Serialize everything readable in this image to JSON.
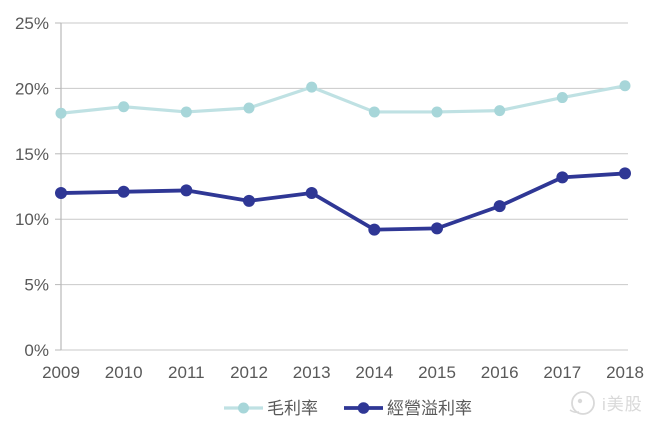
{
  "chart_data": {
    "type": "line",
    "categories": [
      "2009",
      "2010",
      "2011",
      "2012",
      "2013",
      "2014",
      "2015",
      "2016",
      "2017",
      "2018"
    ],
    "series": [
      {
        "key": "gross-margin",
        "name": "毛利率",
        "values": [
          18.1,
          18.6,
          18.2,
          18.5,
          20.1,
          18.2,
          18.2,
          18.3,
          19.3,
          20.2
        ],
        "line_color": "#bfe1e3",
        "marker_color": "#a7d6d9"
      },
      {
        "key": "operating-margin",
        "name": "經營溢利率",
        "values": [
          12.0,
          12.1,
          12.2,
          11.4,
          12.0,
          9.2,
          9.3,
          11.0,
          13.2,
          13.5
        ],
        "line_color": "#2f3795",
        "marker_color": "#2f3795"
      }
    ],
    "title": "",
    "xlabel": "",
    "ylabel": "",
    "ylim": [
      0,
      25
    ],
    "ytick_step": 5,
    "ytick_labels": [
      "0%",
      "5%",
      "10%",
      "15%",
      "20%",
      "25%"
    ],
    "grid": true,
    "legend_position": "bottom"
  },
  "axis": {
    "label_color": "#595959",
    "grid_color": "#c9c9c9",
    "axis_line_color": "#b9b9b9"
  },
  "watermark": {
    "text": "i美股",
    "color": "#d9d9d9"
  },
  "background": "#ffffff"
}
